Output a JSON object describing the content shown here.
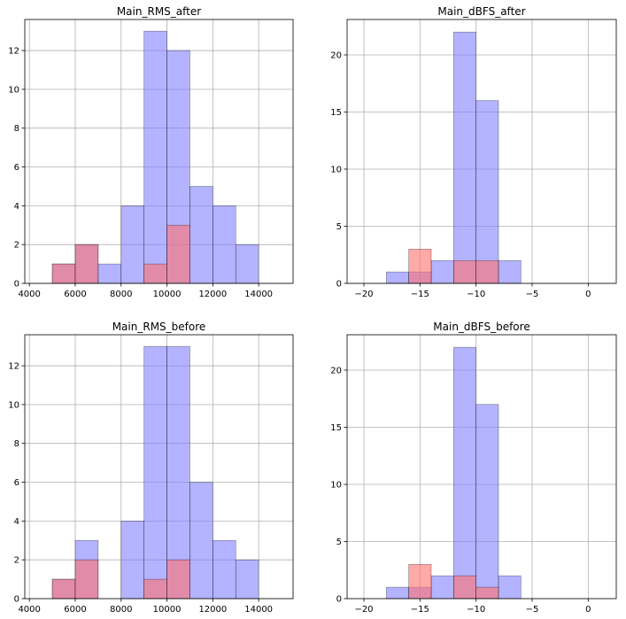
{
  "chart_data": [
    {
      "type": "bar",
      "subtype": "overlaid-histogram",
      "title": "Main_RMS_after",
      "xlim": [
        3800,
        15500
      ],
      "ylim": [
        0,
        13.6
      ],
      "xticks": [
        4000,
        6000,
        8000,
        10000,
        12000,
        14000
      ],
      "yticks": [
        0,
        2,
        4,
        6,
        8,
        10,
        12
      ],
      "grid": true,
      "series": [
        {
          "color": "#8080ff",
          "bins": [
            [
              5000,
              6000,
              1
            ],
            [
              6000,
              7000,
              2
            ],
            [
              7000,
              8000,
              1
            ],
            [
              8000,
              9000,
              4
            ],
            [
              9000,
              10000,
              13
            ],
            [
              10000,
              11000,
              12
            ],
            [
              11000,
              12000,
              5
            ],
            [
              12000,
              13000,
              4
            ],
            [
              13000,
              14000,
              2
            ]
          ]
        },
        {
          "color": "#ff7070",
          "bins": [
            [
              5000,
              6000,
              1
            ],
            [
              6000,
              7000,
              2
            ],
            [
              9000,
              10000,
              1
            ],
            [
              10000,
              11000,
              3
            ]
          ]
        }
      ]
    },
    {
      "type": "bar",
      "subtype": "overlaid-histogram",
      "title": "Main_dBFS_after",
      "xlim": [
        -21.5,
        2.5
      ],
      "ylim": [
        0,
        23.1
      ],
      "xticks": [
        -20,
        -15,
        -10,
        -5,
        0
      ],
      "yticks": [
        0,
        5,
        10,
        15,
        20
      ],
      "grid": true,
      "series": [
        {
          "color": "#8080ff",
          "bins": [
            [
              -18,
              -16,
              1
            ],
            [
              -16,
              -14,
              1
            ],
            [
              -14,
              -12,
              2
            ],
            [
              -12,
              -10,
              22
            ],
            [
              -10,
              -8,
              16
            ],
            [
              -8,
              -6,
              2
            ]
          ]
        },
        {
          "color": "#ff7070",
          "bins": [
            [
              -16,
              -14,
              3
            ],
            [
              -12,
              -10,
              2
            ],
            [
              -10,
              -8,
              2
            ]
          ]
        }
      ]
    },
    {
      "type": "bar",
      "subtype": "overlaid-histogram",
      "title": "Main_RMS_before",
      "xlim": [
        3800,
        15500
      ],
      "ylim": [
        0,
        13.6
      ],
      "xticks": [
        4000,
        6000,
        8000,
        10000,
        12000,
        14000
      ],
      "yticks": [
        0,
        2,
        4,
        6,
        8,
        10,
        12
      ],
      "grid": true,
      "series": [
        {
          "color": "#8080ff",
          "bins": [
            [
              5000,
              6000,
              1
            ],
            [
              6000,
              7000,
              3
            ],
            [
              8000,
              9000,
              4
            ],
            [
              9000,
              10000,
              13
            ],
            [
              10000,
              11000,
              13
            ],
            [
              11000,
              12000,
              6
            ],
            [
              12000,
              13000,
              3
            ],
            [
              13000,
              14000,
              2
            ]
          ]
        },
        {
          "color": "#ff7070",
          "bins": [
            [
              5000,
              6000,
              1
            ],
            [
              6000,
              7000,
              2
            ],
            [
              9000,
              10000,
              1
            ],
            [
              10000,
              11000,
              2
            ]
          ]
        }
      ]
    },
    {
      "type": "bar",
      "subtype": "overlaid-histogram",
      "title": "Main_dBFS_before",
      "xlim": [
        -21.5,
        2.5
      ],
      "ylim": [
        0,
        23.1
      ],
      "xticks": [
        -20,
        -15,
        -10,
        -5,
        0
      ],
      "yticks": [
        0,
        5,
        10,
        15,
        20
      ],
      "grid": true,
      "series": [
        {
          "color": "#8080ff",
          "bins": [
            [
              -18,
              -16,
              1
            ],
            [
              -16,
              -14,
              1
            ],
            [
              -14,
              -12,
              2
            ],
            [
              -12,
              -10,
              22
            ],
            [
              -10,
              -8,
              17
            ],
            [
              -8,
              -6,
              2
            ]
          ]
        },
        {
          "color": "#ff7070",
          "bins": [
            [
              -16,
              -14,
              3
            ],
            [
              -12,
              -10,
              2
            ],
            [
              -10,
              -8,
              1
            ]
          ]
        }
      ]
    }
  ]
}
